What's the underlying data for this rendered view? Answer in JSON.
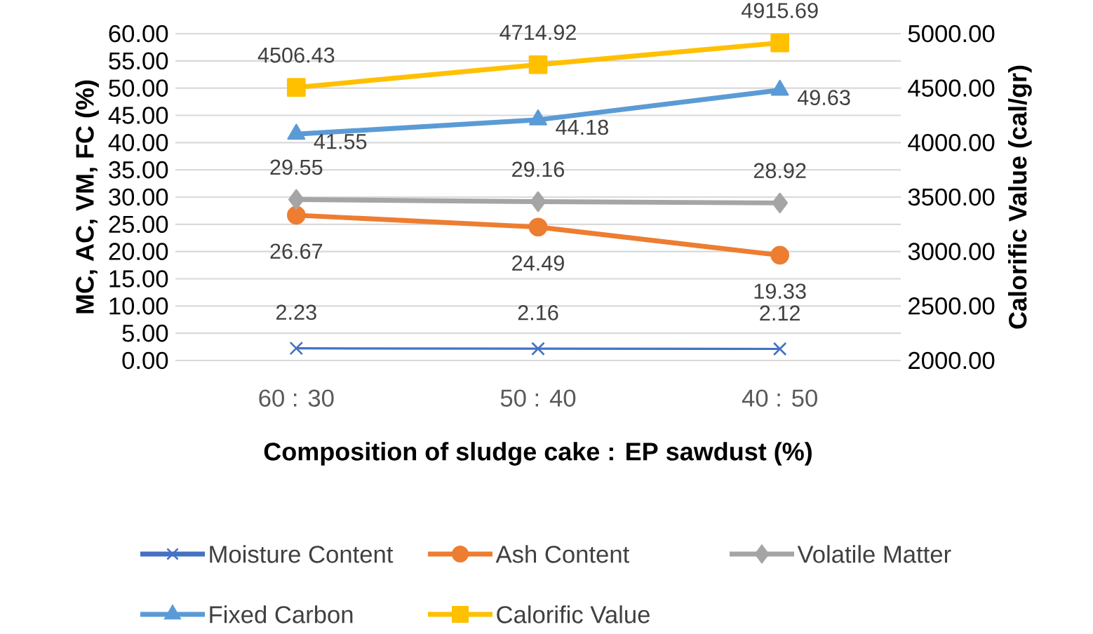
{
  "chart_data": {
    "type": "line",
    "xlabel": "Composition of sludge cake : EP sawdust (%)",
    "ylabel": "MC, AC, VM, FC (%)",
    "y2label": "Calorific Value (cal/gr)",
    "categories": [
      "60 : 30",
      "50 : 40",
      "40 : 50"
    ],
    "series": [
      {
        "name": "Moisture Content",
        "color": "#4472c4",
        "marker": "cross",
        "values": [
          2.23,
          2.16,
          2.12
        ]
      },
      {
        "name": "Ash Content",
        "color": "#ed7d31",
        "marker": "circle",
        "values": [
          26.67,
          24.49,
          19.33
        ]
      },
      {
        "name": "Volatile Matter",
        "color": "#a5a5a5",
        "marker": "diamond",
        "values": [
          29.55,
          29.16,
          28.92
        ]
      },
      {
        "name": "Fixed Carbon",
        "color": "#5b9bd5",
        "marker": "triangle",
        "values": [
          41.55,
          44.18,
          49.63
        ]
      },
      {
        "name": "Calorific Value",
        "color": "#ffc000",
        "marker": "square",
        "axis": "y2",
        "values": [
          4506.43,
          4714.92,
          4915.69
        ]
      }
    ],
    "ylim": [
      0,
      60
    ],
    "yticks": [
      {
        "value": 0,
        "label": "0.00"
      },
      {
        "value": 5,
        "label": "5.00"
      },
      {
        "value": 10,
        "label": "10.00"
      },
      {
        "value": 15,
        "label": "15.00"
      },
      {
        "value": 20,
        "label": "20.00"
      },
      {
        "value": 25,
        "label": "25.00"
      },
      {
        "value": 30,
        "label": "30.00"
      },
      {
        "value": 35,
        "label": "35.00"
      },
      {
        "value": 40,
        "label": "40.00"
      },
      {
        "value": 45,
        "label": "45.00"
      },
      {
        "value": 50,
        "label": "50.00"
      },
      {
        "value": 55,
        "label": "55.00"
      },
      {
        "value": 60,
        "label": "60.00"
      }
    ],
    "y2lim": [
      2000,
      5000
    ],
    "y2ticks": [
      {
        "value": 2000,
        "label": "2000.00"
      },
      {
        "value": 2500,
        "label": "2500.00"
      },
      {
        "value": 3000,
        "label": "3000.00"
      },
      {
        "value": 3500,
        "label": "3500.00"
      },
      {
        "value": 4000,
        "label": "4000.00"
      },
      {
        "value": 4500,
        "label": "4500.00"
      },
      {
        "value": 5000,
        "label": "5000.00"
      }
    ],
    "grid": "y",
    "legend": "bottom",
    "data_labels": true,
    "line_style": "solid"
  }
}
